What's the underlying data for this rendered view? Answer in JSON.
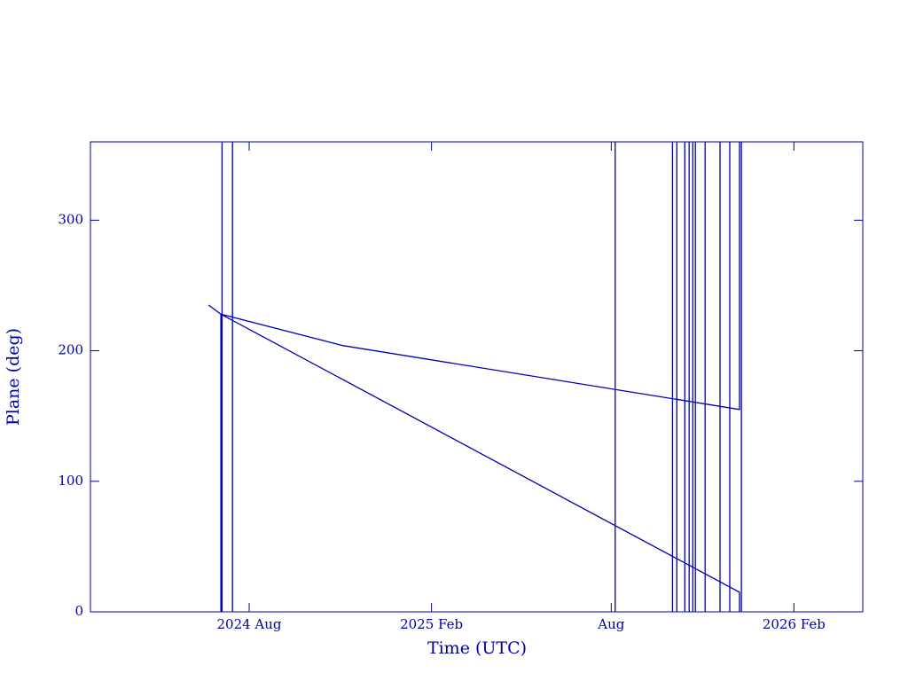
{
  "chart_data": {
    "type": "line",
    "xlabel": "Time (UTC)",
    "ylabel": "Plane (deg)",
    "x": [
      2024.47,
      2024.504,
      2024.504,
      null,
      2024.507,
      2024.507,
      null,
      2024.536,
      2024.536,
      null,
      2024.504,
      2024.84,
      2025.935,
      2025.935,
      null,
      2024.504,
      2025.935,
      2025.935,
      null,
      2025.94,
      2025.94,
      null,
      2025.592,
      2025.592,
      null,
      2025.75,
      2025.75,
      null,
      2025.762,
      2025.762,
      null,
      2025.784,
      2025.784,
      null,
      2025.796,
      2025.796,
      null,
      2025.806,
      2025.806,
      null,
      2025.813,
      2025.813,
      null,
      2025.84,
      2025.84,
      null,
      2025.881,
      2025.881,
      null,
      2025.908,
      2025.908
    ],
    "series": [
      {
        "color": "#0000b4",
        "values": [
          235,
          228,
          0,
          null,
          360,
          0,
          null,
          360,
          0,
          null,
          228,
          204,
          155,
          360,
          null,
          228,
          15,
          0,
          null,
          0,
          360,
          null,
          0,
          360,
          null,
          0,
          360,
          null,
          0,
          360,
          null,
          0,
          360,
          null,
          0,
          360,
          null,
          0,
          360,
          null,
          0,
          360,
          null,
          0,
          360,
          null,
          0,
          360,
          null,
          0,
          360
        ]
      }
    ],
    "xlim": [
      2024.144,
      2026.275
    ],
    "ylim": [
      0,
      360
    ],
    "xticks": [
      {
        "value": 2024.582,
        "label": "2024 Aug"
      },
      {
        "value": 2025.085,
        "label": "2025 Feb"
      },
      {
        "value": 2025.581,
        "label": "Aug"
      },
      {
        "value": 2026.085,
        "label": "2026 Feb"
      }
    ],
    "yticks": [
      0,
      100,
      200,
      300
    ],
    "axis_color": "#0000a0"
  }
}
